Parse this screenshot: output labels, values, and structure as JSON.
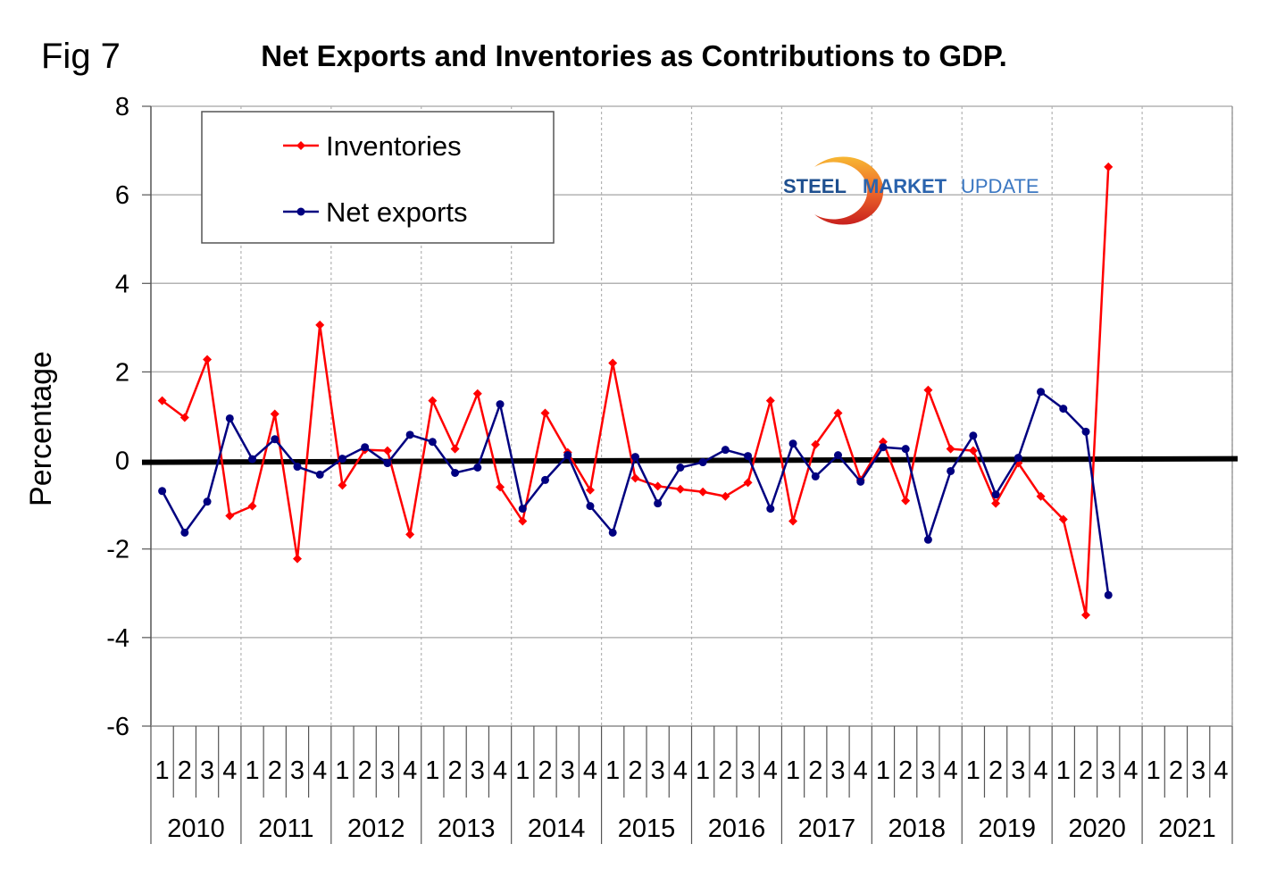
{
  "figure": {
    "label": "Fig 7",
    "logo": {
      "word1": "STEEL",
      "word2": "MARKET",
      "word3": "UPDATE",
      "colors": {
        "text_dark": "#1e4f8f",
        "text_light": "#3b77c2",
        "arc_top": "#f5a623",
        "arc_bottom": "#c8201e"
      }
    }
  },
  "chart_data": {
    "type": "line",
    "title": "Net Exports and Inventories as Contributions to GDP.",
    "xlabel": "",
    "ylabel": "Percentage",
    "ylim": [
      -6,
      8
    ],
    "yticks": [
      8,
      6,
      4,
      2,
      0,
      -2,
      -4,
      -6
    ],
    "ytick_labels": [
      "8",
      "6",
      "4",
      "2",
      "0",
      "-2",
      "-4",
      "-6"
    ],
    "grid": true,
    "legend_position": "top-left",
    "years": [
      "2010",
      "2011",
      "2012",
      "2013",
      "2014",
      "2015",
      "2016",
      "2017",
      "2018",
      "2019",
      "2020",
      "2021"
    ],
    "quarters": [
      "1",
      "2",
      "3",
      "4"
    ],
    "zero_line": true,
    "series": [
      {
        "name": "Inventories",
        "color": "#ff0000",
        "marker": "diamond",
        "values": [
          1.35,
          0.97,
          2.28,
          -1.25,
          -1.03,
          1.05,
          -2.22,
          3.06,
          -0.56,
          0.24,
          0.22,
          -1.67,
          1.35,
          0.26,
          1.51,
          -0.6,
          -1.37,
          1.07,
          0.18,
          -0.67,
          2.2,
          -0.4,
          -0.58,
          -0.65,
          -0.71,
          -0.81,
          -0.5,
          1.35,
          -1.37,
          0.36,
          1.07,
          -0.44,
          0.42,
          -0.91,
          1.59,
          0.26,
          0.22,
          -0.97,
          -0.06,
          -0.81,
          -1.33,
          -3.49,
          6.63
        ]
      },
      {
        "name": "Net exports",
        "color": "#000080",
        "marker": "circle",
        "values": [
          -0.69,
          -1.63,
          -0.93,
          0.95,
          0.03,
          0.48,
          -0.14,
          -0.32,
          0.04,
          0.3,
          -0.06,
          0.58,
          0.42,
          -0.28,
          -0.16,
          1.27,
          -1.09,
          -0.44,
          0.12,
          -1.03,
          -1.63,
          0.08,
          -0.97,
          -0.16,
          -0.04,
          0.24,
          0.1,
          -1.09,
          0.38,
          -0.36,
          0.12,
          -0.48,
          0.3,
          0.26,
          -1.79,
          -0.24,
          0.56,
          -0.77,
          0.06,
          1.55,
          1.17,
          0.65,
          -3.04
        ]
      }
    ]
  }
}
